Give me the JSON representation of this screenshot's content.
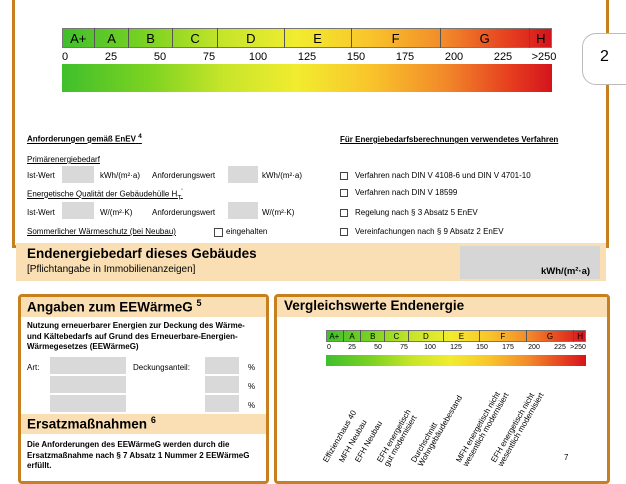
{
  "page_number": "2",
  "scale_top": {
    "classes": [
      "A+",
      "A",
      "B",
      "C",
      "D",
      "E",
      "F",
      "G",
      "H"
    ],
    "ticks": [
      "0",
      "25",
      "50",
      "75",
      "100",
      "125",
      "150",
      "175",
      "200",
      "225",
      ">250"
    ]
  },
  "requirements": {
    "title": "Anforderungen gemäß EnEV",
    "footnote": "4",
    "primary_heading": "Primärenergiebedarf",
    "ist_wert": "Ist-Wert",
    "unit_kwh": "kWh/(m²·a)",
    "anforderungswert": "Anforderungswert",
    "energetic_heading": "Energetische Qualität der Gebäudehülle H",
    "energetic_sub": "T",
    "energetic_sup": "'",
    "unit_w": "W/(m²·K)",
    "summer_heading": "Sommerlicher Wärmeschutz (bei Neubau)",
    "eingehalten": "eingehalten"
  },
  "procedures": {
    "title": "Für Energiebedarfsberechnungen verwendetes Verfahren",
    "items": [
      "Verfahren nach DIN V 4108-6 und DIN V 4701-10",
      "Verfahren nach DIN V 18599",
      "Regelung nach § 3 Absatz 5 EnEV",
      "Vereinfachungen nach § 9 Absatz 2 EnEV"
    ]
  },
  "endenergie": {
    "title": "Endenergiebedarf dieses Gebäudes",
    "subtitle": "[Pflichtangabe in Immobilienanzeigen]",
    "unit": "kWh/(m²·a)"
  },
  "eewaerme": {
    "title": "Angaben zum EEWärmeG",
    "footnote": "5",
    "text": "Nutzung erneuerbarer Energien zur Deckung des Wärme- und Kältebedarfs auf Grund des Erneuerbare-Energien-Wärmegesetzes (EEWärmeG)",
    "art": "Art:",
    "deckungsanteil": "Deckungsanteil:",
    "percent": "%",
    "ersatz_title": "Ersatzmaßnahmen",
    "ersatz_footnote": "6",
    "ersatz_text": "Die Anforderungen des EEWärmeG werden durch die Ersatzmaßnahme nach § 7 Absatz 1 Nummer 2 EEWärmeG erfüllt."
  },
  "vergleich": {
    "title": "Vergleichswerte Endenergie",
    "classes": [
      "A+",
      "A",
      "B",
      "C",
      "D",
      "E",
      "F",
      "G",
      "H"
    ],
    "ticks": [
      "0",
      "25",
      "50",
      "75",
      "100",
      "125",
      "150",
      "175",
      "200",
      "225",
      ">250"
    ],
    "labels": [
      "Effizienzhaus 40",
      "MFH Neubau",
      "EFH Neubau",
      "EFH energetisch gut modernisiert",
      "Durchschnitt Wohngebäudebestand",
      "MFH energetisch nicht wesentlich modernisiert",
      "EFH energetisch nicht wesentlich modernisiert"
    ],
    "footnote": "7"
  }
}
